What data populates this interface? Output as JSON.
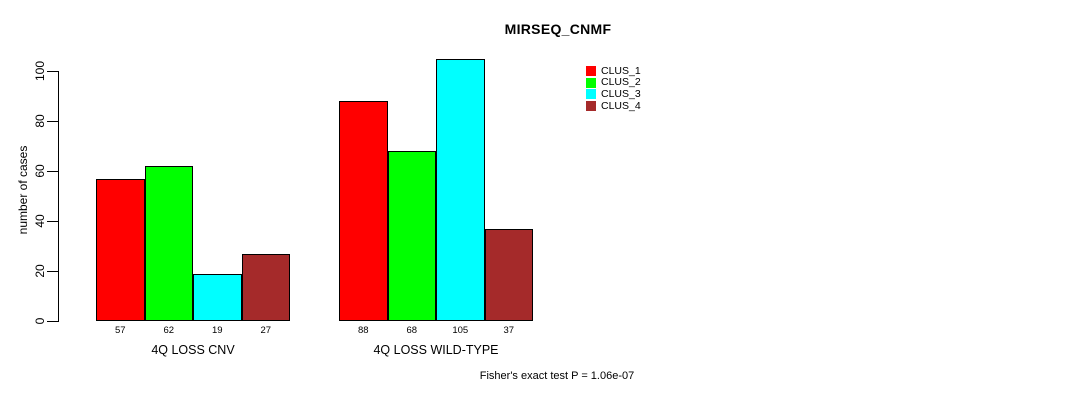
{
  "title": "MIRSEQ_CNMF",
  "colors": {
    "background": "#ffffff",
    "axis": "#000000",
    "bar_border": "#000000"
  },
  "chart_data": {
    "type": "bar",
    "title": "MIRSEQ_CNMF",
    "ylabel": "number of cases",
    "ylim": [
      0,
      105
    ],
    "yticks": [
      0,
      20,
      40,
      60,
      80,
      100
    ],
    "grid": false,
    "legend_position": "top-right",
    "categories": [
      "4Q LOSS CNV",
      "4Q LOSS WILD-TYPE"
    ],
    "series": [
      {
        "name": "CLUS_1",
        "color": "#ff0000",
        "values": [
          57,
          88
        ]
      },
      {
        "name": "CLUS_2",
        "color": "#00ff00",
        "values": [
          62,
          68
        ]
      },
      {
        "name": "CLUS_3",
        "color": "#00ffff",
        "values": [
          19,
          105
        ]
      },
      {
        "name": "CLUS_4",
        "color": "#a52a2a",
        "values": [
          27,
          37
        ]
      }
    ],
    "bar_value_labels": [
      [
        57,
        62,
        19,
        27
      ],
      [
        88,
        68,
        105,
        37
      ]
    ],
    "annotation": "Fisher's exact test P = 1.06e-07"
  }
}
